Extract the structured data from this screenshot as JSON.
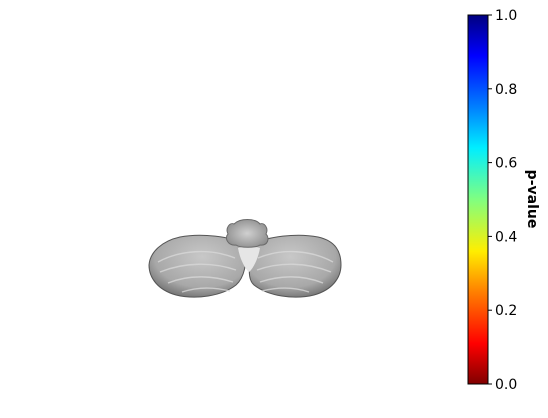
{
  "chart_data": {
    "type": "heatmap",
    "image": "cerebellum-slice",
    "colorbar": {
      "colormap": "jet_r",
      "range": [
        0.0,
        1.0
      ],
      "ticks": [
        0.0,
        0.2,
        0.4,
        0.6,
        0.8,
        1.0
      ],
      "tick_labels": [
        "0.0",
        "0.2",
        "0.4",
        "0.6",
        "0.8",
        "1.0"
      ],
      "label": "p-value",
      "colors": {
        "min": "#800000",
        "low": "#ff2000",
        "mid_low": "#ffee00",
        "mid": "#80ff80",
        "mid_high": "#00e4ff",
        "high": "#0040ff",
        "max": "#000080"
      }
    },
    "axes": "off"
  }
}
